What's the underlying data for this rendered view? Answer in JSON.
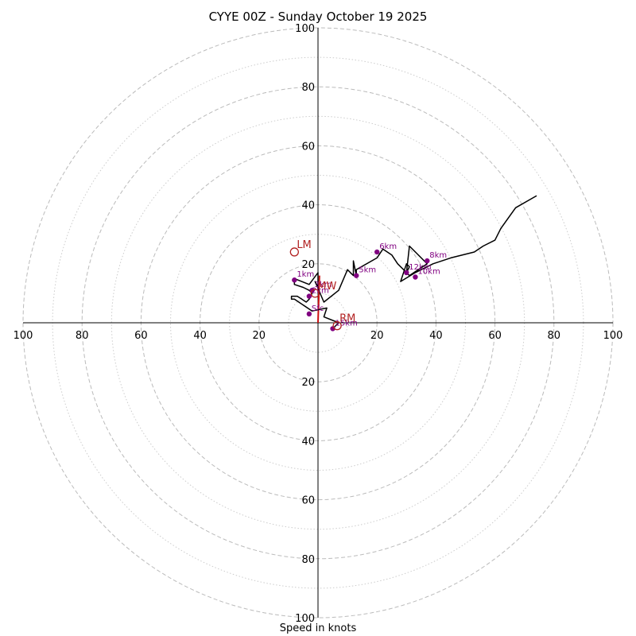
{
  "chart_data": {
    "type": "hodograph",
    "title": "CYYE 00Z - Sunday October 19 2025",
    "xlabel": "Speed in knots",
    "range": 100,
    "ring_step": 10,
    "axis_ticks": [
      20,
      40,
      60,
      80,
      100
    ],
    "tick_labels": {
      "top": [
        "20",
        "40",
        "60",
        "80",
        "100"
      ],
      "bottom": [
        "20",
        "40",
        "60",
        "80",
        "100"
      ],
      "left": [
        "20",
        "40",
        "60",
        "80",
        "100"
      ],
      "right": [
        "20",
        "40",
        "60",
        "80",
        "100"
      ]
    },
    "colors": {
      "trace": "#000000",
      "height_marker": "#800080",
      "motion": "#b22222",
      "shear_vector": "#cc1111",
      "ring_dashed": "#bbbbbb",
      "ring_dotted": "#cccccc"
    },
    "trace_u": [
      5,
      7,
      2,
      3,
      -2,
      -8,
      -9,
      -9,
      -7,
      -4,
      -3,
      -2,
      -3,
      -5,
      -8,
      -8,
      -8,
      -3,
      0,
      0,
      -1,
      2,
      7,
      10,
      12,
      12,
      12,
      13,
      13,
      20,
      22,
      25,
      27,
      30,
      31,
      36,
      37,
      31,
      30,
      31,
      30,
      28,
      33,
      39,
      45,
      53,
      56,
      60,
      62,
      67,
      74,
      67
    ],
    "trace_v": [
      -2,
      0,
      2,
      5,
      4,
      8,
      8,
      9,
      9,
      7,
      8,
      10,
      11,
      12,
      13,
      14,
      15,
      13,
      17,
      12,
      14,
      7,
      11,
      18,
      16,
      18,
      21,
      16,
      18,
      22,
      25,
      23,
      20,
      17,
      26,
      21,
      20,
      16,
      17,
      19,
      20,
      14,
      17,
      20,
      22,
      24,
      26,
      28,
      32,
      39,
      43,
      39
    ],
    "heights": [
      {
        "label": "Sfc",
        "u": -3,
        "v": 3
      },
      {
        "label": "1km",
        "u": -8,
        "v": 14.5
      },
      {
        "label": "2km",
        "u": -3,
        "v": 9
      },
      {
        "label": "3km",
        "u": -2,
        "v": 11
      },
      {
        "label": "5km",
        "u": 13,
        "v": 16
      },
      {
        "label": "6km",
        "u": 20,
        "v": 24
      },
      {
        "label": "8km",
        "u": 37,
        "v": 21
      },
      {
        "label": "10km",
        "u": 33,
        "v": 15.5
      },
      {
        "label": "12km",
        "u": 30,
        "v": 17
      },
      {
        "label": "15km",
        "u": 5,
        "v": -2
      }
    ],
    "motions": [
      {
        "label": "LM",
        "u": -8,
        "v": 24
      },
      {
        "label": "MW",
        "u": -1,
        "v": 10
      },
      {
        "label": "RM",
        "u": 6.5,
        "v": -1
      }
    ],
    "shear_vector": {
      "u1": 0,
      "v1": 0,
      "u2": 0.5,
      "v2": 16
    }
  }
}
